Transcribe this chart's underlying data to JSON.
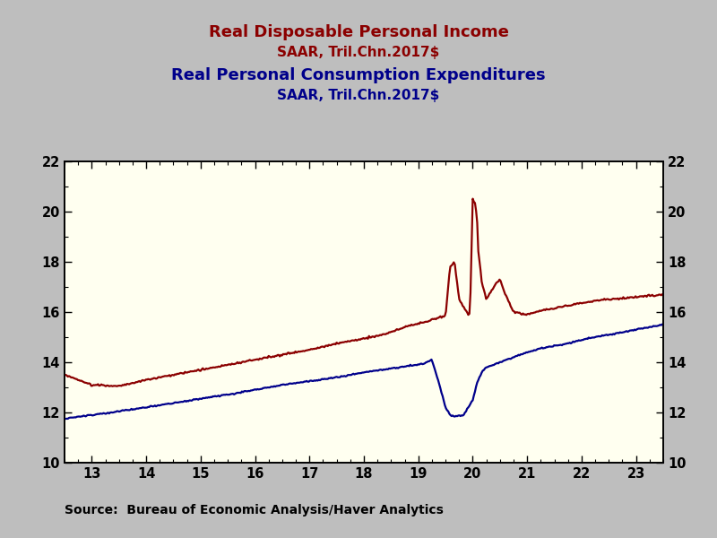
{
  "title_line1": "Real Disposable Personal Income",
  "title_line2": "SAAR, Tril.Chn.2017$",
  "title_line3": "Real Personal Consumption Expenditures",
  "title_line4": "SAAR, Tril.Chn.2017$",
  "source_text": "Source:  Bureau of Economic Analysis/Haver Analytics",
  "title_color_red": "#8B0000",
  "title_color_blue": "#00008B",
  "line_color_red": "#8B0000",
  "line_color_blue": "#00008B",
  "background_color": "#FFFFF0",
  "outer_background": "#BEBEBE",
  "ylim": [
    10,
    22
  ],
  "xlim": [
    12.5,
    23.5
  ],
  "yticks": [
    10,
    12,
    14,
    16,
    18,
    20,
    22
  ],
  "xticks": [
    13,
    14,
    15,
    16,
    17,
    18,
    19,
    20,
    21,
    22,
    23
  ]
}
